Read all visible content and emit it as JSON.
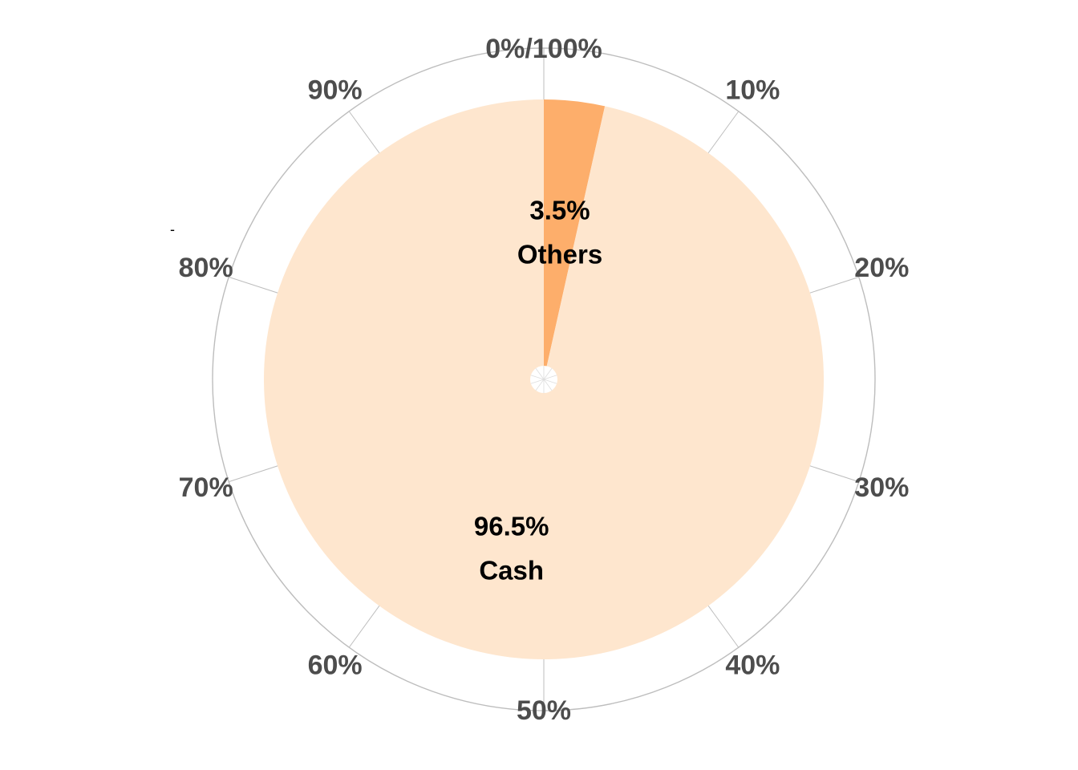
{
  "chart_data": {
    "type": "pie",
    "coordinate_system": "polar",
    "start_angle_deg": 0,
    "direction": "clockwise",
    "slices": [
      {
        "label": "Others",
        "value": 3.5,
        "value_label": "3.5%",
        "color": "#fdae6b"
      },
      {
        "label": "Cash",
        "value": 96.5,
        "value_label": "96.5%",
        "color": "#fee6ce"
      }
    ],
    "angular_ticks": [
      {
        "value": 0,
        "label": "0%/100%"
      },
      {
        "value": 10,
        "label": "10%"
      },
      {
        "value": 20,
        "label": "20%"
      },
      {
        "value": 30,
        "label": "30%"
      },
      {
        "value": 40,
        "label": "40%"
      },
      {
        "value": 50,
        "label": "50%"
      },
      {
        "value": 60,
        "label": "60%"
      },
      {
        "value": 70,
        "label": "70%"
      },
      {
        "value": 80,
        "label": "80%"
      },
      {
        "value": 90,
        "label": "90%"
      }
    ],
    "stray_mark": "-",
    "grid": true,
    "grid_color": "#bdbdbd",
    "tick_color": "#4d4d4d",
    "title": "",
    "legend": "none"
  }
}
